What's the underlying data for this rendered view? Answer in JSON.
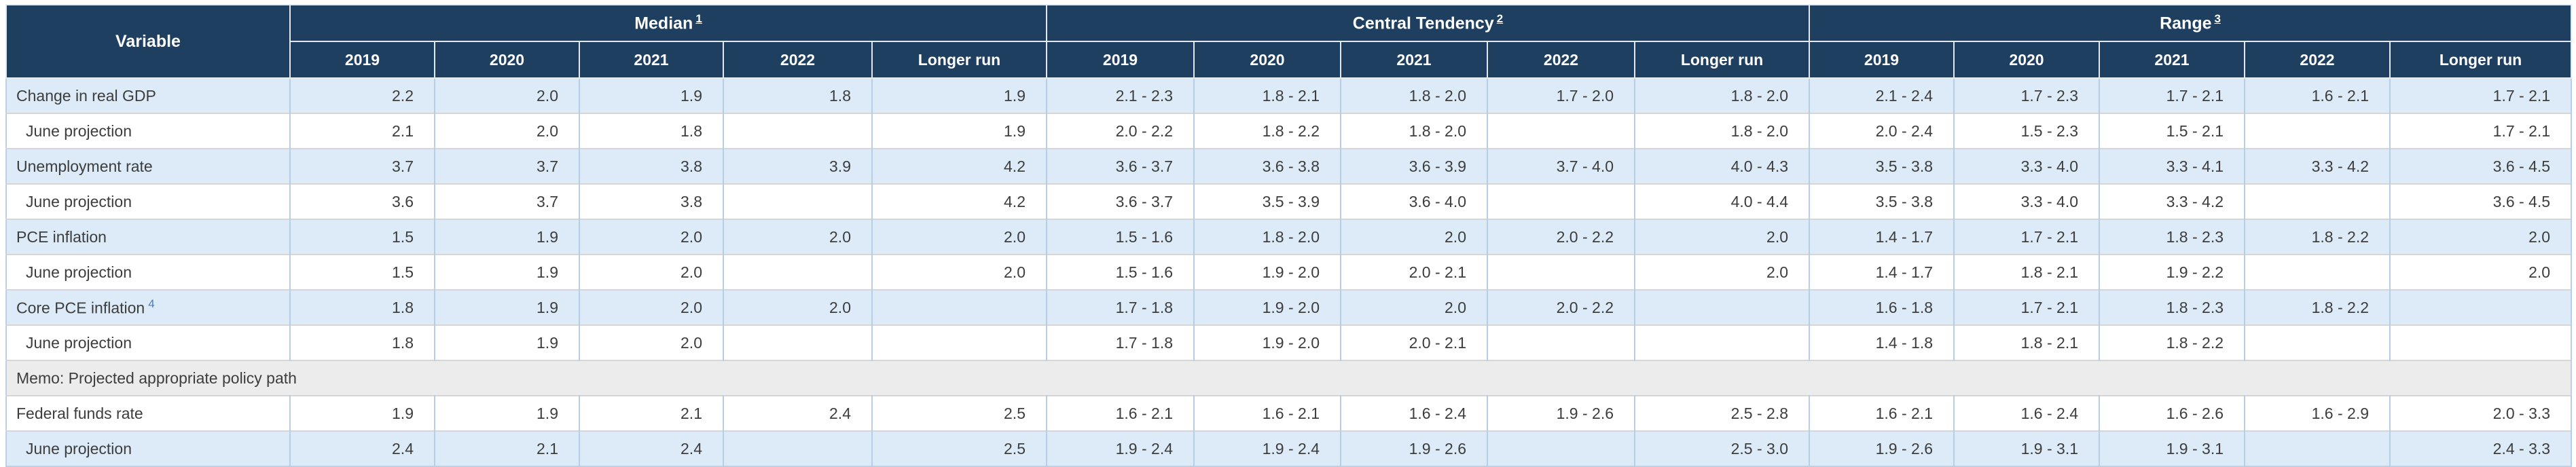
{
  "table": {
    "corner_label": "Variable",
    "groups": [
      {
        "label": "Median",
        "footnote": "1",
        "years": [
          "2019",
          "2020",
          "2021",
          "2022",
          "Longer run"
        ]
      },
      {
        "label": "Central Tendency",
        "footnote": "2",
        "years": [
          "2019",
          "2020",
          "2021",
          "2022",
          "Longer run"
        ]
      },
      {
        "label": "Range",
        "footnote": "3",
        "years": [
          "2019",
          "2020",
          "2021",
          "2022",
          "Longer run"
        ]
      }
    ],
    "rows": [
      {
        "type": "data",
        "shade": "blue",
        "indent": false,
        "label": "Change in real GDP",
        "footnote": "",
        "median": [
          "2.2",
          "2.0",
          "1.9",
          "1.8",
          "1.9"
        ],
        "central_tendency": [
          "2.1 - 2.3",
          "1.8 - 2.1",
          "1.8 - 2.0",
          "1.7 - 2.0",
          "1.8 - 2.0"
        ],
        "range": [
          "2.1 - 2.4",
          "1.7 - 2.3",
          "1.7 - 2.1",
          "1.6 - 2.1",
          "1.7 - 2.1"
        ]
      },
      {
        "type": "data",
        "shade": "white",
        "indent": true,
        "label": "June projection",
        "footnote": "",
        "median": [
          "2.1",
          "2.0",
          "1.8",
          "",
          "1.9"
        ],
        "central_tendency": [
          "2.0 - 2.2",
          "1.8 - 2.2",
          "1.8 - 2.0",
          "",
          "1.8 - 2.0"
        ],
        "range": [
          "2.0 - 2.4",
          "1.5 - 2.3",
          "1.5 - 2.1",
          "",
          "1.7 - 2.1"
        ]
      },
      {
        "type": "data",
        "shade": "blue",
        "indent": false,
        "label": "Unemployment rate",
        "footnote": "",
        "median": [
          "3.7",
          "3.7",
          "3.8",
          "3.9",
          "4.2"
        ],
        "central_tendency": [
          "3.6 - 3.7",
          "3.6 - 3.8",
          "3.6 - 3.9",
          "3.7 - 4.0",
          "4.0 - 4.3"
        ],
        "range": [
          "3.5 - 3.8",
          "3.3 - 4.0",
          "3.3 - 4.1",
          "3.3 - 4.2",
          "3.6 - 4.5"
        ]
      },
      {
        "type": "data",
        "shade": "white",
        "indent": true,
        "label": "June projection",
        "footnote": "",
        "median": [
          "3.6",
          "3.7",
          "3.8",
          "",
          "4.2"
        ],
        "central_tendency": [
          "3.6 - 3.7",
          "3.5 - 3.9",
          "3.6 - 4.0",
          "",
          "4.0 - 4.4"
        ],
        "range": [
          "3.5 - 3.8",
          "3.3 - 4.0",
          "3.3 - 4.2",
          "",
          "3.6 - 4.5"
        ]
      },
      {
        "type": "data",
        "shade": "blue",
        "indent": false,
        "label": "PCE inflation",
        "footnote": "",
        "median": [
          "1.5",
          "1.9",
          "2.0",
          "2.0",
          "2.0"
        ],
        "central_tendency": [
          "1.5 - 1.6",
          "1.8 - 2.0",
          "2.0",
          "2.0 - 2.2",
          "2.0"
        ],
        "range": [
          "1.4 - 1.7",
          "1.7 - 2.1",
          "1.8 - 2.3",
          "1.8 - 2.2",
          "2.0"
        ]
      },
      {
        "type": "data",
        "shade": "white",
        "indent": true,
        "label": "June projection",
        "footnote": "",
        "median": [
          "1.5",
          "1.9",
          "2.0",
          "",
          "2.0"
        ],
        "central_tendency": [
          "1.5 - 1.6",
          "1.9 - 2.0",
          "2.0 - 2.1",
          "",
          "2.0"
        ],
        "range": [
          "1.4 - 1.7",
          "1.8 - 2.1",
          "1.9 - 2.2",
          "",
          "2.0"
        ]
      },
      {
        "type": "data",
        "shade": "blue",
        "indent": false,
        "label": "Core PCE inflation",
        "footnote": "4",
        "median": [
          "1.8",
          "1.9",
          "2.0",
          "2.0",
          ""
        ],
        "central_tendency": [
          "1.7 - 1.8",
          "1.9 - 2.0",
          "2.0",
          "2.0 - 2.2",
          ""
        ],
        "range": [
          "1.6 - 1.8",
          "1.7 - 2.1",
          "1.8 - 2.3",
          "1.8 - 2.2",
          ""
        ]
      },
      {
        "type": "data",
        "shade": "white",
        "indent": true,
        "label": "June projection",
        "footnote": "",
        "median": [
          "1.8",
          "1.9",
          "2.0",
          "",
          ""
        ],
        "central_tendency": [
          "1.7 - 1.8",
          "1.9 - 2.0",
          "2.0 - 2.1",
          "",
          ""
        ],
        "range": [
          "1.4 - 1.8",
          "1.8 - 2.1",
          "1.8 - 2.2",
          "",
          ""
        ]
      },
      {
        "type": "memo",
        "shade": "memo",
        "indent": false,
        "label": "Memo: Projected appropriate policy path",
        "footnote": "",
        "median": [
          "",
          "",
          "",
          "",
          ""
        ],
        "central_tendency": [
          "",
          "",
          "",
          "",
          ""
        ],
        "range": [
          "",
          "",
          "",
          "",
          ""
        ]
      },
      {
        "type": "data",
        "shade": "white",
        "indent": false,
        "label": "Federal funds rate",
        "footnote": "",
        "median": [
          "1.9",
          "1.9",
          "2.1",
          "2.4",
          "2.5"
        ],
        "central_tendency": [
          "1.6 - 2.1",
          "1.6 - 2.1",
          "1.6 - 2.4",
          "1.9 - 2.6",
          "2.5 - 2.8"
        ],
        "range": [
          "1.6 - 2.1",
          "1.6 - 2.4",
          "1.6 - 2.6",
          "1.6 - 2.9",
          "2.0 - 3.3"
        ]
      },
      {
        "type": "data",
        "shade": "blue",
        "indent": true,
        "label": "June projection",
        "footnote": "",
        "median": [
          "2.4",
          "2.1",
          "2.4",
          "",
          "2.5"
        ],
        "central_tendency": [
          "1.9 - 2.4",
          "1.9 - 2.4",
          "1.9 - 2.6",
          "",
          "2.5 - 3.0"
        ],
        "range": [
          "1.9 - 2.6",
          "1.9 - 3.1",
          "1.9 - 3.1",
          "",
          "2.4 - 3.3"
        ]
      }
    ]
  }
}
